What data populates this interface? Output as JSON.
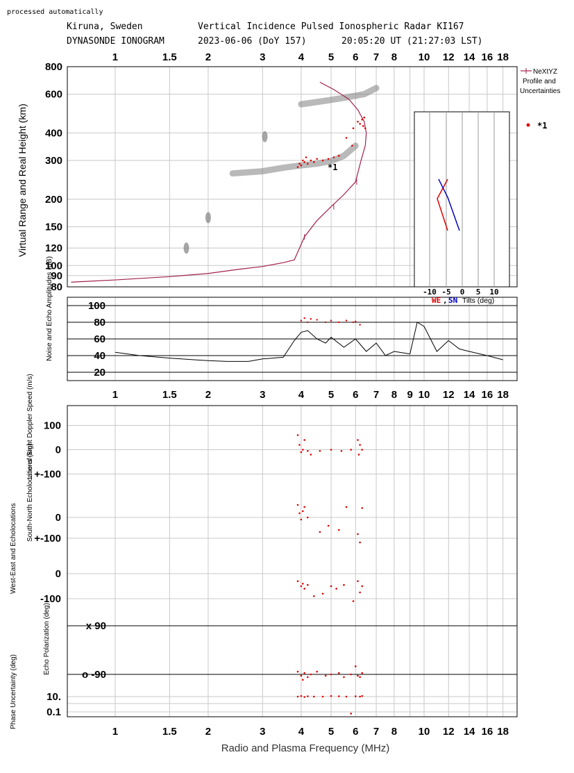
{
  "header": {
    "processed": "processed automatically",
    "location": "Kiruna, Sweden",
    "radar": "Vertical Incidence Pulsed Ionospheric Radar KI167",
    "product": "DYNASONDE IONOGRAM",
    "date": "2023-06-06 (DoY 157)",
    "time": "20:05:20 UT (21:27:03 LST)"
  },
  "colors": {
    "profile": "#a0204a",
    "echo": "#e00000",
    "we": "#e00000",
    "sn": "#0000c0",
    "grid": "#c8c8c8",
    "trace": "#808080"
  },
  "xaxis": {
    "label": "Radio and Plasma Frequency (MHz)",
    "top_ticks": [
      "1",
      "1.5",
      "2",
      "3",
      "4",
      "5",
      "6",
      "7",
      "8",
      "10",
      "12",
      "14",
      "16",
      "18"
    ],
    "mid_ticks": [
      "1",
      "1.5",
      "2",
      "3",
      "4",
      "5",
      "6",
      "7",
      "8",
      "9",
      "10",
      "12",
      "14",
      "16",
      "18"
    ],
    "bottom_ticks": [
      "1",
      "1.5",
      "2",
      "3",
      "4",
      "5",
      "6",
      "7",
      "8",
      "10",
      "12",
      "14",
      "16",
      "18"
    ]
  },
  "legend": {
    "profile_label": [
      "NeXtYZ",
      "Profile and",
      "Uncertainties"
    ],
    "echo_label": "*1"
  },
  "tilt_inset": {
    "xticks": [
      "-10",
      "-5",
      "0",
      "5",
      "10"
    ],
    "we": "WE",
    "sep": ",",
    "sn": "SN",
    "label": "Tilts (deg)"
  },
  "chart_data": [
    {
      "type": "scatter",
      "panel": "ionogram",
      "ylabel": "Virtual Range and Real Height (km)",
      "yscale": "log",
      "ylim": [
        80,
        800
      ],
      "xscale": "log",
      "xlim": [
        0.7,
        20
      ],
      "yticks": [
        "800",
        "600",
        "400",
        "300",
        "200",
        "150",
        "120",
        "100",
        "90",
        "80"
      ],
      "annotation": "*1",
      "profile": {
        "name": "NeXtYZ Profile and Uncertainties",
        "x": [
          0.72,
          1.0,
          1.5,
          2.0,
          2.5,
          3.0,
          3.5,
          3.8,
          4.1,
          4.5,
          5.0,
          5.5,
          6.0,
          6.25,
          6.45,
          6.5,
          6.4,
          6.1,
          5.7,
          5.1,
          4.6
        ],
        "y": [
          84,
          86,
          89,
          92,
          96,
          99,
          103,
          106,
          135,
          160,
          185,
          210,
          240,
          300,
          350,
          400,
          450,
          510,
          570,
          630,
          680
        ]
      },
      "echo_points": {
        "name": "*1",
        "x": [
          3.9,
          3.95,
          4.0,
          4.05,
          4.1,
          4.15,
          4.2,
          4.3,
          4.4,
          4.5,
          4.7,
          4.9,
          5.1,
          5.3,
          5.6,
          5.9,
          6.1,
          6.2,
          6.3,
          6.35,
          6.4,
          5.85,
          6.45
        ],
        "y": [
          280,
          290,
          285,
          300,
          295,
          310,
          290,
          300,
          295,
          305,
          300,
          305,
          310,
          315,
          380,
          420,
          450,
          440,
          460,
          430,
          470,
          350,
          420
        ]
      },
      "trace_segments": [
        {
          "x": [
            2.4,
            3.0,
            3.5,
            4.0,
            4.5,
            5.0,
            5.5,
            6.0
          ],
          "y": [
            262,
            268,
            278,
            285,
            290,
            298,
            315,
            350
          ]
        },
        {
          "x": [
            4.0,
            4.8,
            5.6,
            6.4,
            7.0
          ],
          "y": [
            540,
            560,
            580,
            600,
            640
          ]
        },
        {
          "x": [
            3.05
          ],
          "y": [
            385
          ]
        },
        {
          "x": [
            2.0
          ],
          "y": [
            165
          ]
        },
        {
          "x": [
            1.7
          ],
          "y": [
            120
          ]
        }
      ]
    },
    {
      "type": "line",
      "panel": "amplitudes",
      "ylabel": "Noise and Echo Amplitudes (dB)",
      "ylim": [
        10,
        110
      ],
      "yticks": [
        "100",
        "80",
        "60",
        "40",
        "20"
      ],
      "x": [
        1.0,
        1.2,
        1.5,
        1.8,
        2.0,
        2.3,
        2.7,
        3.0,
        3.5,
        3.8,
        4.0,
        4.2,
        4.5,
        4.8,
        5.0,
        5.5,
        6.0,
        6.5,
        7.0,
        7.5,
        8.0,
        9.0,
        9.5,
        10.0,
        11.0,
        12.0,
        13.0,
        14.0,
        16.0,
        18.0
      ],
      "y": [
        44,
        40,
        37,
        35,
        34,
        33,
        33,
        36,
        38,
        58,
        68,
        70,
        60,
        55,
        62,
        50,
        60,
        45,
        55,
        40,
        45,
        42,
        80,
        75,
        45,
        58,
        48,
        45,
        40,
        35
      ],
      "echo_levels": {
        "x": [
          4.0,
          4.1,
          4.2,
          4.3,
          4.5,
          4.8,
          5.0,
          5.3,
          5.6,
          5.9,
          6.0,
          6.2
        ],
        "y": [
          82,
          85,
          80,
          84,
          83,
          80,
          82,
          80,
          82,
          80,
          81,
          77
        ]
      }
    },
    {
      "type": "scatter",
      "panel": "doppler",
      "ylabel": "Line-of-Sight Doppler Speed (m/s)",
      "ylim": [
        -150,
        150
      ],
      "yticks": [
        "100",
        "0",
        "+-100"
      ],
      "x": [
        3.9,
        3.95,
        4.0,
        4.05,
        4.1,
        4.2,
        4.3,
        4.6,
        5.0,
        5.4,
        5.8,
        6.1,
        6.15,
        6.2,
        6.3
      ],
      "y": [
        60,
        20,
        -10,
        0,
        40,
        -5,
        -20,
        -5,
        0,
        -5,
        0,
        40,
        -20,
        20,
        0
      ]
    },
    {
      "type": "scatter",
      "panel": "echolocation-sn",
      "ylabel": "South-North Echolocations (km)",
      "ylim": [
        -150,
        150
      ],
      "yticks": [
        "0",
        "+-100"
      ],
      "x": [
        3.9,
        3.95,
        4.0,
        4.05,
        4.1,
        4.2,
        4.6,
        4.9,
        5.3,
        5.6,
        6.1,
        6.2,
        6.3
      ],
      "y": [
        60,
        20,
        -10,
        30,
        50,
        0,
        -70,
        -40,
        -60,
        50,
        -80,
        -120,
        45
      ]
    },
    {
      "type": "scatter",
      "panel": "echolocation-we",
      "ylabel": "West-East and Echolocations",
      "ylim": [
        -150,
        100
      ],
      "yticks": [
        "0",
        "-100"
      ],
      "x": [
        3.9,
        4.0,
        4.05,
        4.1,
        4.2,
        4.4,
        4.7,
        5.0,
        5.2,
        5.5,
        5.9,
        6.1,
        6.2,
        6.3
      ],
      "y": [
        -30,
        -50,
        -40,
        -60,
        -45,
        -90,
        -80,
        -50,
        -60,
        -45,
        -110,
        -30,
        -75,
        -50
      ]
    },
    {
      "type": "scatter",
      "panel": "polarization",
      "ylabel": "Echo Polarization (deg)",
      "ylim": [
        -120,
        120
      ],
      "yticks": [
        "x 90",
        "o -90"
      ],
      "x": [
        3.9,
        4.0,
        4.05,
        4.1,
        4.2,
        4.3,
        4.5,
        4.8,
        5.0,
        5.3,
        5.5,
        5.8,
        6.0,
        6.1,
        6.2,
        6.3
      ],
      "y": [
        -80,
        -95,
        -110,
        -85,
        -100,
        -90,
        -80,
        -95,
        -90,
        -85,
        -100,
        -90,
        -60,
        -95,
        -100,
        -85
      ]
    },
    {
      "type": "scatter",
      "panel": "phase-uncertainty",
      "ylabel": "Phase Uncertainty (deg)",
      "yscale": "log",
      "ylim": [
        0.05,
        50
      ],
      "yticks": [
        "10.",
        "0.1"
      ],
      "x": [
        3.9,
        4.0,
        4.1,
        4.2,
        4.4,
        4.7,
        5.0,
        5.3,
        5.6,
        5.8,
        6.0,
        6.2,
        6.3
      ],
      "y": [
        10,
        12,
        9,
        11,
        10,
        10,
        12,
        11,
        10,
        0.06,
        11,
        10,
        12
      ]
    }
  ]
}
